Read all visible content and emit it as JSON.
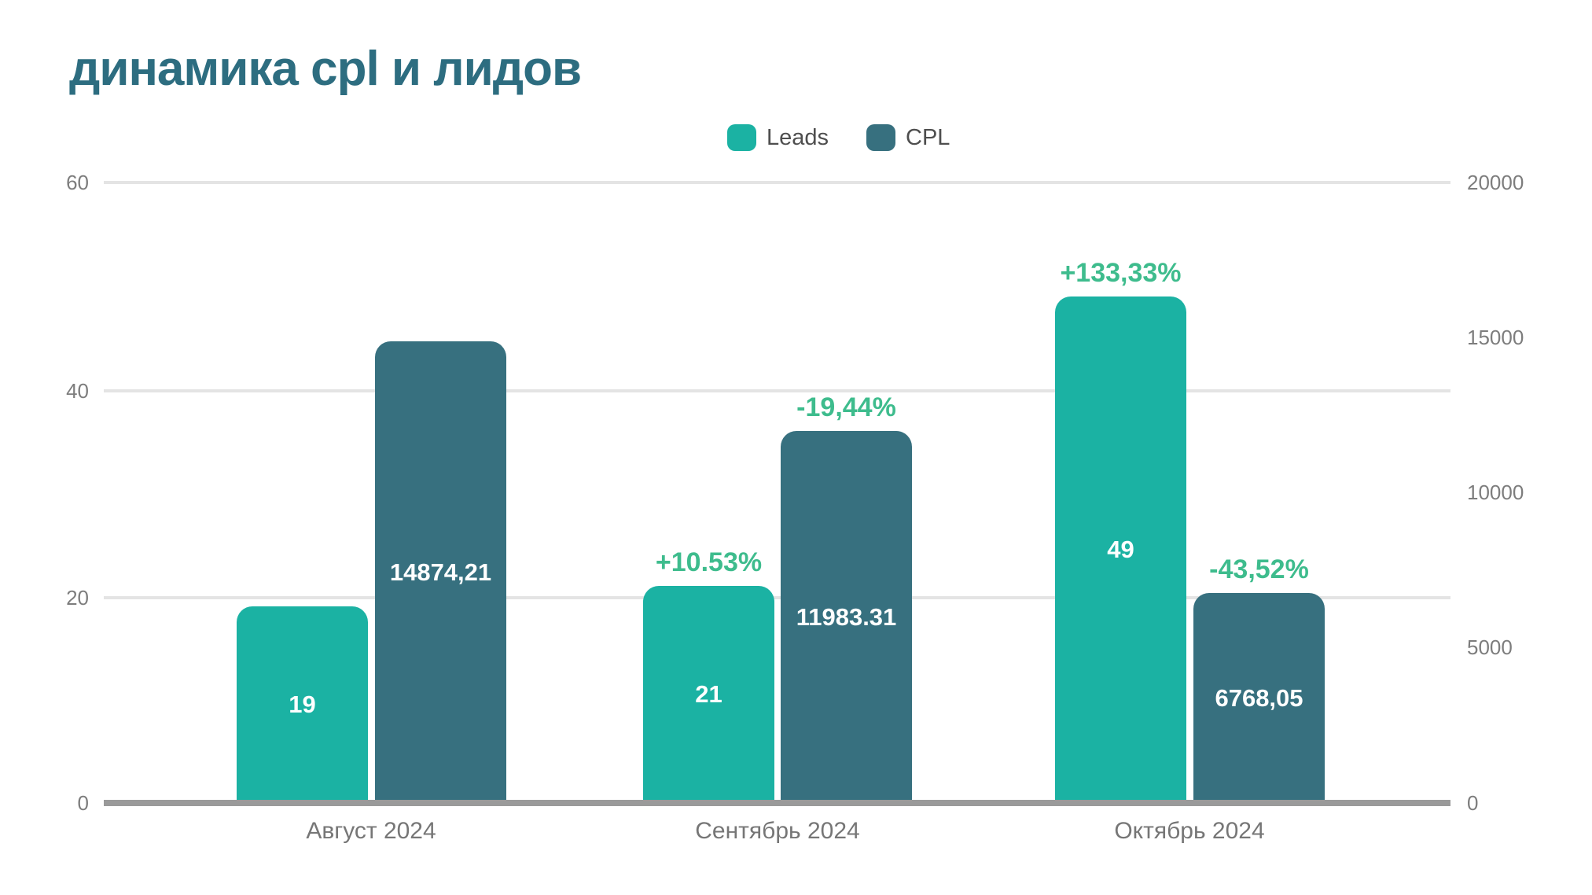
{
  "title": "динамика cpl и лидов",
  "legend": {
    "items": [
      {
        "label": "Leads",
        "color": "#1bb2a3"
      },
      {
        "label": "CPL",
        "color": "#37707f"
      }
    ]
  },
  "colors": {
    "title": "#2d6d80",
    "leads_bar": "#1bb2a3",
    "cpl_bar": "#37707f",
    "percent_label": "#3ebc8d",
    "gridline": "#e4e4e4",
    "axis_line": "#9a9a9a",
    "axis_text": "#7d7d7d",
    "category_text": "#767676"
  },
  "chart_data": {
    "type": "bar",
    "title": "динамика cpl и лидов",
    "categories": [
      "Август 2024",
      "Сентябрь 2024",
      "Октябрь 2024"
    ],
    "series": [
      {
        "name": "Leads",
        "axis": "left",
        "color": "#1bb2a3",
        "values": [
          19,
          21,
          49
        ],
        "labels": [
          "19",
          "21",
          "49"
        ],
        "change_labels": [
          "",
          "+10.53%",
          "+133,33%"
        ]
      },
      {
        "name": "CPL",
        "axis": "right",
        "color": "#37707f",
        "values": [
          14874.21,
          11983.31,
          6768.05
        ],
        "labels": [
          "14874,21",
          "11983.31",
          "6768,05"
        ],
        "change_labels": [
          "",
          "-19,44%",
          "-43,52%"
        ]
      }
    ],
    "axes": {
      "left": {
        "max": 60,
        "min": 0,
        "ticks": [
          "0",
          "20",
          "40",
          "60"
        ]
      },
      "right": {
        "max": 20000,
        "min": 0,
        "ticks": [
          "0",
          "5000",
          "10000",
          "15000",
          "20000"
        ]
      }
    },
    "grid": true,
    "legend_position": "top-center"
  }
}
